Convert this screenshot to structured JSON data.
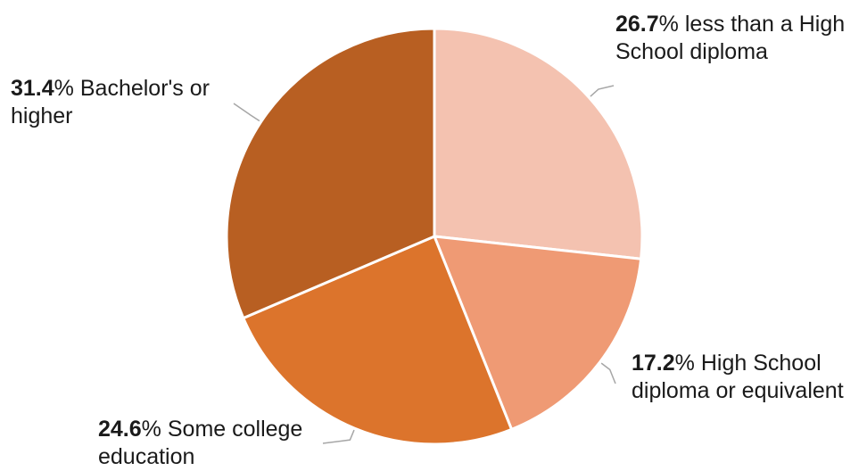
{
  "chart_data": {
    "type": "pie",
    "title": "",
    "slices": [
      {
        "label": "less than a High School diploma",
        "value": 26.7,
        "value_text": "26.7",
        "color": "#f4c2b0"
      },
      {
        "label": "High School diploma or equivalent",
        "value": 17.2,
        "value_text": "17.2",
        "color": "#ef9a74"
      },
      {
        "label": "Some college education",
        "value": 24.6,
        "value_text": "24.6",
        "color": "#dc742c"
      },
      {
        "label": "Bachelor's or higher",
        "value": 31.4,
        "value_text": "31.4",
        "color": "#b85f22"
      }
    ],
    "unit": "%",
    "start_angle_deg": 0,
    "direction": "clockwise",
    "border_color": "#ffffff",
    "leader_line_color": "#a6a6a6"
  }
}
